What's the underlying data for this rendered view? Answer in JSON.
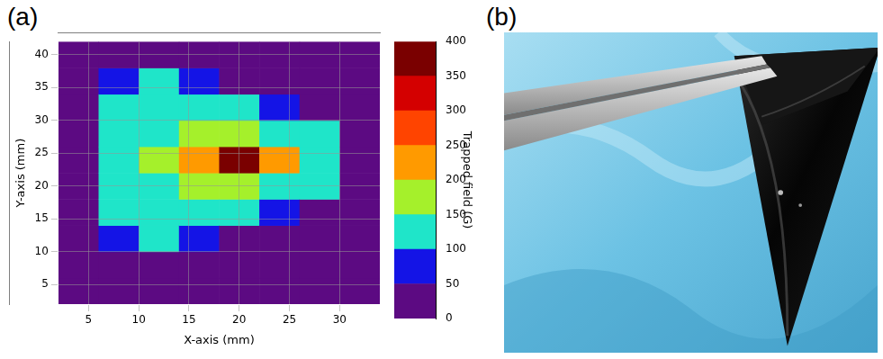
{
  "chart_data": {
    "type": "heatmap",
    "panel_label": "(a)",
    "x_title": "X-axis (mm)",
    "y_title": "Y-axis (mm)",
    "x": [
      4,
      8,
      12,
      16,
      20,
      24,
      28,
      32
    ],
    "y": [
      4,
      8,
      12,
      16,
      20,
      24,
      28,
      32,
      36,
      40
    ],
    "cells": [
      [
        10,
        12,
        15,
        15,
        15,
        15,
        15,
        15,
        12,
        10
      ],
      [
        12,
        20,
        95,
        110,
        115,
        120,
        115,
        110,
        90,
        15
      ],
      [
        12,
        18,
        105,
        125,
        135,
        150,
        135,
        125,
        100,
        14
      ],
      [
        10,
        15,
        60,
        130,
        160,
        230,
        160,
        130,
        55,
        12
      ],
      [
        10,
        14,
        20,
        120,
        180,
        400,
        180,
        120,
        20,
        12
      ],
      [
        10,
        12,
        15,
        95,
        140,
        230,
        140,
        95,
        15,
        10
      ],
      [
        10,
        10,
        12,
        20,
        110,
        130,
        110,
        20,
        12,
        10
      ],
      [
        8,
        10,
        10,
        12,
        15,
        20,
        15,
        12,
        10,
        8
      ]
    ],
    "xlim": [
      2,
      34
    ],
    "xticks": [
      5,
      10,
      15,
      20,
      25,
      30
    ],
    "ylim": [
      2,
      42
    ],
    "yticks": [
      5,
      10,
      15,
      20,
      25,
      30,
      35,
      40
    ],
    "grid": true,
    "colorbar": {
      "title": "Trapped field (G)",
      "lim": [
        0,
        400
      ],
      "ticks": [
        0,
        50,
        100,
        150,
        200,
        250,
        300,
        350,
        400
      ],
      "colors": [
        "#5c0a82",
        "#1414e6",
        "#1fe5c9",
        "#a5f02b",
        "#ff9a00",
        "#ff4400",
        "#d40000",
        "#7a0000"
      ]
    }
  },
  "photo": {
    "panel_label": "(b)"
  }
}
